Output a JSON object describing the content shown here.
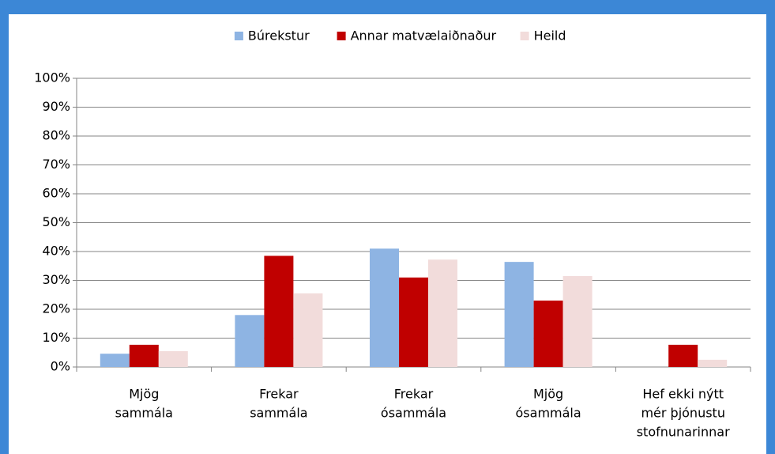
{
  "chart_data": {
    "type": "bar",
    "categories": [
      [
        "Mjög",
        "sammála"
      ],
      [
        "Frekar",
        "sammála"
      ],
      [
        "Frekar",
        "ósammála"
      ],
      [
        "Mjög",
        "ósammála"
      ],
      [
        "Hef ekki nýtt",
        "mér þjónustu",
        "stofnunarinnar"
      ]
    ],
    "series": [
      {
        "name": "Búrekstur",
        "color": "#8eb4e3",
        "values": [
          4.6,
          18,
          41,
          36.4,
          0
        ]
      },
      {
        "name": "Annar matvælaiðnaður",
        "color": "#c00000",
        "values": [
          7.7,
          38.5,
          31,
          23,
          7.7
        ]
      },
      {
        "name": "Heild",
        "color": "#f2dcdb",
        "values": [
          5.5,
          25.5,
          37.2,
          31.5,
          2.5
        ]
      }
    ],
    "ylim": [
      0,
      100
    ],
    "yticks": [
      {
        "value": 0,
        "label": "0%"
      },
      {
        "value": 10,
        "label": "10%"
      },
      {
        "value": 20,
        "label": "20%"
      },
      {
        "value": 30,
        "label": "30%"
      },
      {
        "value": 40,
        "label": "40%"
      },
      {
        "value": 50,
        "label": "50%"
      },
      {
        "value": 60,
        "label": "60%"
      },
      {
        "value": 70,
        "label": "70%"
      },
      {
        "value": 80,
        "label": "80%"
      },
      {
        "value": 90,
        "label": "90%"
      },
      {
        "value": 100,
        "label": "100%"
      }
    ],
    "grid": true,
    "legend": "top"
  }
}
